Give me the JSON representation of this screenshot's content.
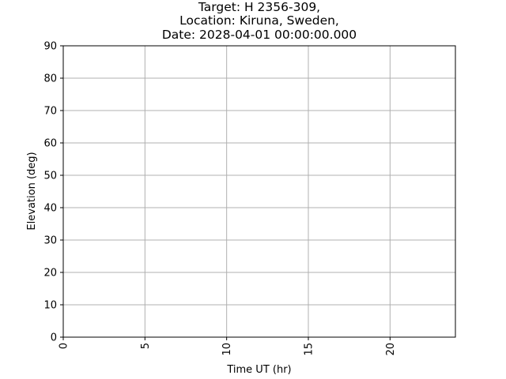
{
  "chart_data": {
    "type": "line",
    "title_lines": [
      "Target: H 2356-309,",
      "Location: Kiruna, Sweden,",
      "Date: 2028-04-01 00:00:00.000"
    ],
    "xlabel": "Time UT (hr)",
    "ylabel": "Elevation (deg)",
    "xlim": [
      0,
      24
    ],
    "ylim": [
      0,
      90
    ],
    "xticks": [
      0,
      5,
      10,
      15,
      20
    ],
    "yticks": [
      0,
      10,
      20,
      30,
      40,
      50,
      60,
      70,
      80,
      90
    ],
    "x_tick_label_rotation": "vertical",
    "grid": true,
    "series": []
  }
}
